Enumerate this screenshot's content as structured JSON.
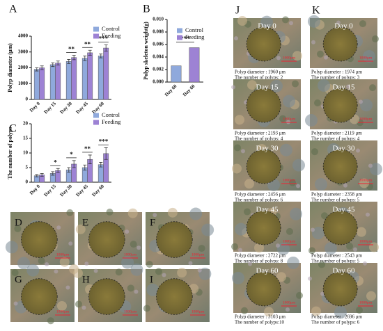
{
  "chart_data": [
    {
      "type": "bar",
      "panel": "A",
      "ylabel": "Polyp diameter (μm)",
      "categories": [
        "Day 0",
        "Day 15",
        "Day 30",
        "Day 45",
        "Day 60"
      ],
      "series": [
        {
          "name": "Control",
          "color": "#8fa9dc",
          "values": [
            1900,
            2200,
            2400,
            2600,
            2750
          ],
          "errors": [
            100,
            120,
            130,
            150,
            120
          ]
        },
        {
          "name": "Feeding",
          "color": "#9d82d4",
          "values": [
            2000,
            2300,
            2650,
            2950,
            3250
          ],
          "errors": [
            120,
            130,
            140,
            160,
            200
          ]
        }
      ],
      "significance": [
        null,
        null,
        "**",
        "**",
        "***"
      ],
      "ylim": [
        0,
        4000
      ],
      "yticks": [
        0,
        1000,
        2000,
        3000,
        4000
      ],
      "legend": "upper-right"
    },
    {
      "type": "bar",
      "panel": "B",
      "ylabel": "Polyp skeleton weight(g)",
      "categories": [
        "Day 60",
        "Day 60"
      ],
      "series": [
        {
          "name": "Control",
          "color": "#8fa9dc",
          "values": [
            0.0026,
            null
          ]
        },
        {
          "name": "Feeding",
          "color": "#9d82d4",
          "values": [
            null,
            0.0055
          ]
        }
      ],
      "significance_pair": "***",
      "ylim": [
        0,
        0.01
      ],
      "yticks": [
        {
          "value": 0,
          "label": "0.000"
        },
        {
          "value": 0.002,
          "label": "0.002"
        },
        {
          "value": 0.004,
          "label": "0.004"
        },
        {
          "value": 0.006,
          "label": "0.006"
        },
        {
          "value": 0.008,
          "label": "0.008"
        },
        {
          "value": 0.01,
          "label": "0.010"
        }
      ],
      "legend": "upper-right"
    },
    {
      "type": "bar",
      "panel": "C",
      "ylabel": "The number of polyps",
      "categories": [
        "Day 0",
        "Day 15",
        "Day 30",
        "Day 45",
        "Day 60"
      ],
      "series": [
        {
          "name": "Control",
          "color": "#8fa9dc",
          "values": [
            2.2,
            3,
            4.2,
            5,
            6
          ],
          "errors": [
            0.4,
            0.6,
            0.8,
            0.9,
            0.8
          ]
        },
        {
          "name": "Feeding",
          "color": "#9d82d4",
          "values": [
            2.5,
            4,
            6.2,
            7.8,
            9.8
          ],
          "errors": [
            0.5,
            0.7,
            1.2,
            1.5,
            2
          ]
        }
      ],
      "significance": [
        null,
        "*",
        "*",
        "**",
        "***"
      ],
      "ylim": [
        0,
        20
      ],
      "yticks": [
        0,
        5,
        10,
        15,
        20
      ],
      "legend": "upper-right"
    }
  ],
  "photo_grid": [
    "D",
    "E",
    "F",
    "G",
    "H",
    "I"
  ],
  "scale_bar": "1000μm",
  "photo_columns": [
    {
      "label": "J",
      "rows": [
        {
          "day": "Day 0",
          "diameter": "Polyp diameter : 1960 μm",
          "count": "The number of polyps: 2"
        },
        {
          "day": "Day 15",
          "diameter": "Polyp diameter : 2193 μm",
          "count": "The number of polyps: 4"
        },
        {
          "day": "Day 30",
          "diameter": "Polyp diameter : 2456 μm",
          "count": "The number of polyps: 6"
        },
        {
          "day": "Day 45",
          "diameter": "Polyp diameter : 2722 μm",
          "count": "The number of polyps: 8"
        },
        {
          "day": "Day 60",
          "diameter": "Polyp diameter : 3103 μm",
          "count": "The number of polyps:10"
        }
      ]
    },
    {
      "label": "K",
      "rows": [
        {
          "day": "Day 0",
          "diameter": "Polyp diameter : 1974 μm",
          "count": "The number of polyps: 3"
        },
        {
          "day": "Day 15",
          "diameter": "Polyp diameter : 2119 μm",
          "count": "The number of polyps: 4"
        },
        {
          "day": "Day 30",
          "diameter": "Polyp diameter : 2358 μm",
          "count": "The number of polyps: 5"
        },
        {
          "day": "Day 45",
          "diameter": "Polyp diameter : 2543 μm",
          "count": "The number of polyps: 5"
        },
        {
          "day": "Day 60",
          "diameter": "Polyp diameter : 2696 μm",
          "count": "The number of polyps: 6"
        }
      ]
    }
  ]
}
